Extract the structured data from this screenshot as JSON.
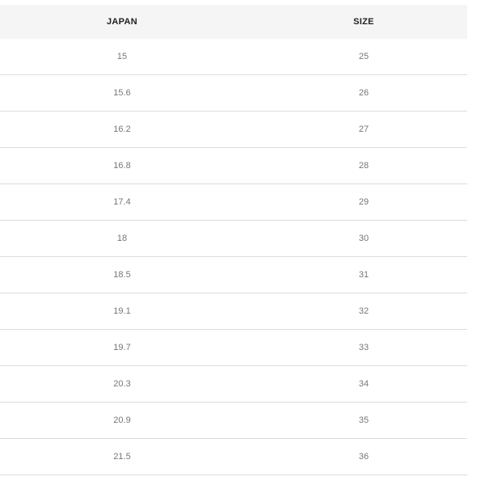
{
  "table": {
    "headers": [
      "JAPAN",
      "SIZE"
    ],
    "rows": [
      [
        "15",
        "25"
      ],
      [
        "15.6",
        "26"
      ],
      [
        "16.2",
        "27"
      ],
      [
        "16.8",
        "28"
      ],
      [
        "17.4",
        "29"
      ],
      [
        "18",
        "30"
      ],
      [
        "18.5",
        "31"
      ],
      [
        "19.1",
        "32"
      ],
      [
        "19.7",
        "33"
      ],
      [
        "20.3",
        "34"
      ],
      [
        "20.9",
        "35"
      ],
      [
        "21.5",
        "36"
      ]
    ]
  }
}
